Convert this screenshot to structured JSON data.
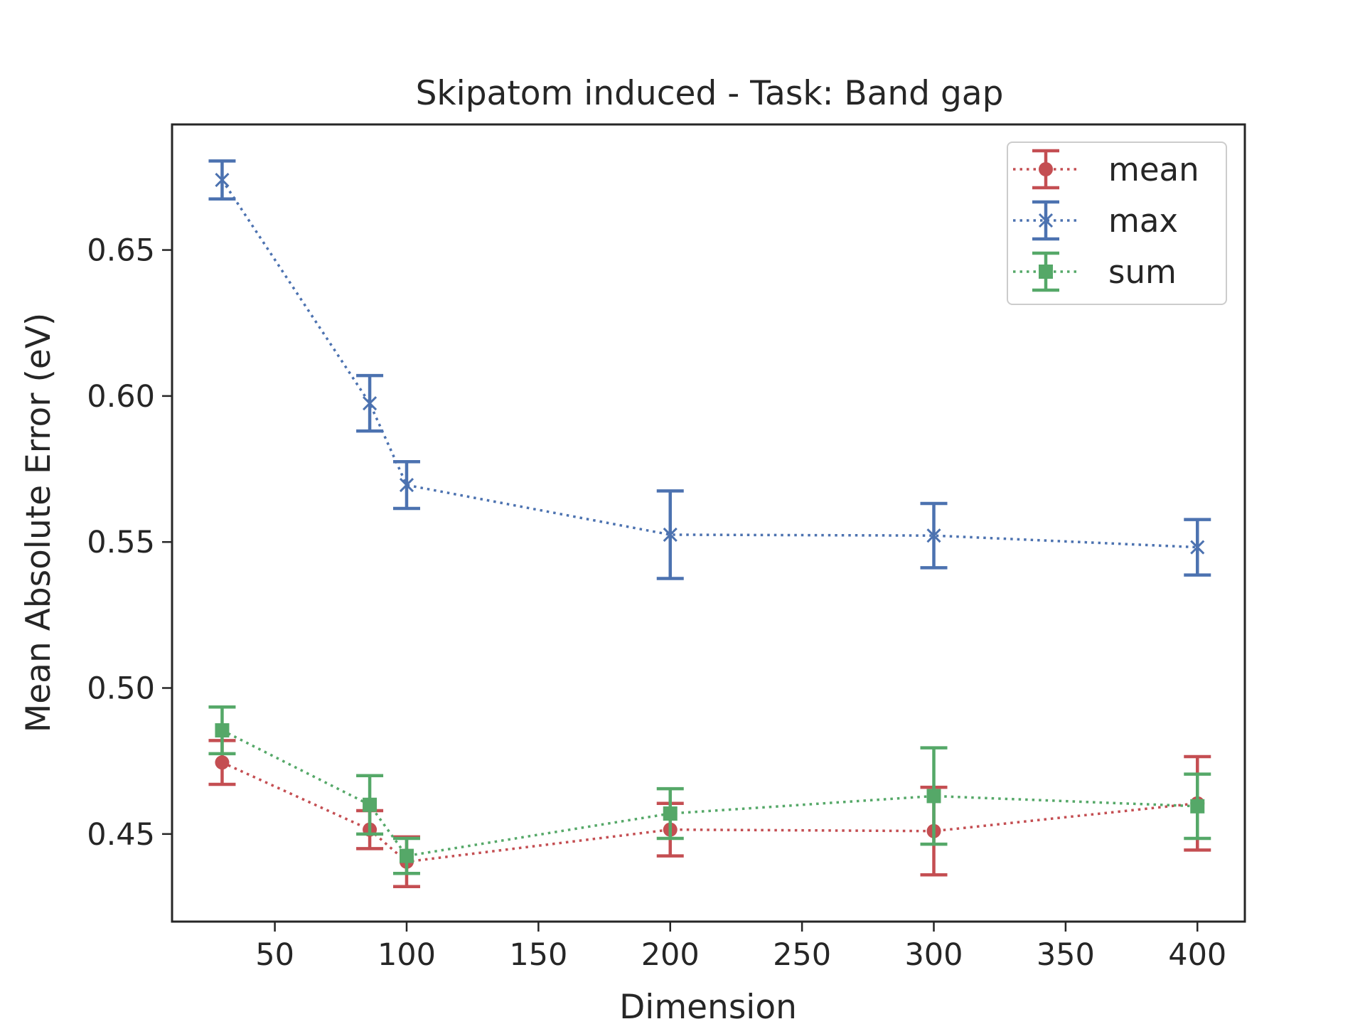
{
  "chart_data": {
    "type": "line",
    "title": "Skipatom induced - Task: Band gap",
    "xlabel": "Dimension",
    "ylabel": "Mean Absolute Error (eV)",
    "xlim": [
      11,
      418
    ],
    "ylim": [
      0.42,
      0.693
    ],
    "xticks": [
      50,
      100,
      150,
      200,
      250,
      300,
      350,
      400
    ],
    "yticks": [
      0.45,
      0.5,
      0.55,
      0.6,
      0.65
    ],
    "xtick_labels": [
      "50",
      "100",
      "150",
      "200",
      "250",
      "300",
      "350",
      "400"
    ],
    "ytick_labels": [
      "0.45",
      "0.50",
      "0.55",
      "0.60",
      "0.65"
    ],
    "x": [
      30,
      86,
      100,
      200,
      300,
      400
    ],
    "legend_position": "top-right",
    "grid": false,
    "series": [
      {
        "name": "mean",
        "color": "#c44e52",
        "marker": "circle",
        "values": [
          0.4745,
          0.4515,
          0.4405,
          0.4515,
          0.451,
          0.4605
        ],
        "errors": [
          0.0075,
          0.0065,
          0.0085,
          0.009,
          0.015,
          0.016
        ]
      },
      {
        "name": "max",
        "color": "#4c72b0",
        "marker": "x",
        "values": [
          0.674,
          0.5975,
          0.5695,
          0.5525,
          0.5522,
          0.5482
        ],
        "errors": [
          0.0065,
          0.0095,
          0.008,
          0.015,
          0.011,
          0.0095
        ]
      },
      {
        "name": "sum",
        "color": "#55a868",
        "marker": "square",
        "values": [
          0.4855,
          0.46,
          0.4425,
          0.457,
          0.463,
          0.4595
        ],
        "errors": [
          0.008,
          0.01,
          0.006,
          0.0085,
          0.0165,
          0.011
        ]
      }
    ]
  }
}
